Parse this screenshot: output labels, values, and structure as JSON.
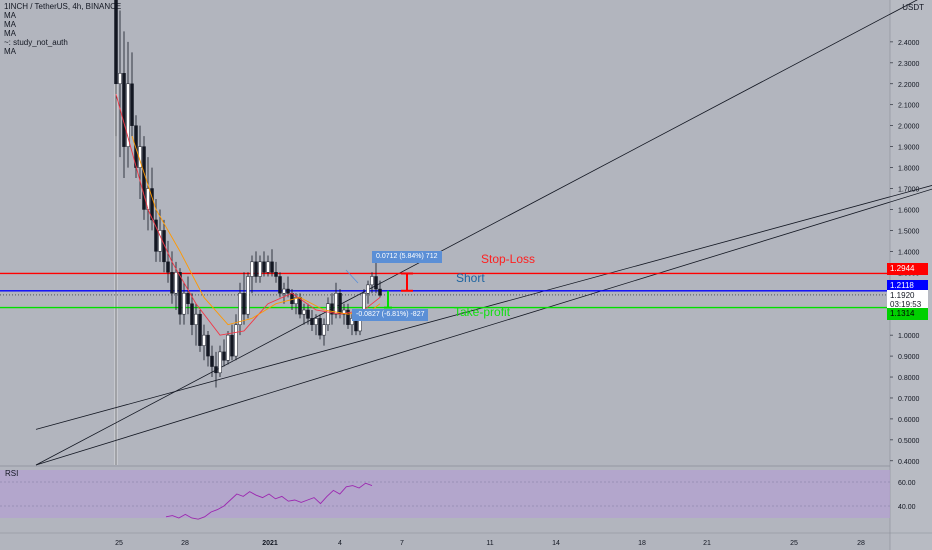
{
  "legend": {
    "symbol": "1INCH / TetherUS, 4h, BINANCE",
    "indicators": [
      "MA",
      "MA",
      "MA",
      "~: study_not_auth",
      "MA"
    ]
  },
  "currency": "USDT",
  "annotations": {
    "stop_loss": "Stop-Loss",
    "short": "Short",
    "take_profit": "Take-profit",
    "measure_up": "0.0712 (5.84%) 712",
    "measure_down": "-0.0827 (-6.81%) -827"
  },
  "price_tags": {
    "stop_loss": "1.2944",
    "entry": "1.2118",
    "current": "1.1920",
    "countdown": "03:19:53",
    "take_profit": "1.1314"
  },
  "colors": {
    "background": "#b2b5be",
    "stop_loss": "#ff0000",
    "take_profit": "#00e000",
    "entry": "#0000ff",
    "short_text": "#1e64a0",
    "rsi_band": "#b4a0d2",
    "rsi_line": "#9c27b0",
    "measure_box": "#5b8fd6"
  },
  "rsi": {
    "label": "RSI",
    "ticks": [
      "60.00",
      "40.00"
    ]
  },
  "chart_data": {
    "type": "candlestick",
    "symbol": "1INCH / TetherUS",
    "timeframe": "4h",
    "exchange": "BINANCE",
    "y_unit": "USDT",
    "ylim": [
      0.38,
      2.6
    ],
    "price_ticks": [
      "2.4000",
      "2.3000",
      "2.2000",
      "2.1000",
      "2.0000",
      "1.9000",
      "1.8000",
      "1.7000",
      "1.6000",
      "1.5000",
      "1.4000",
      "1.3000",
      "1.2000",
      "1.1000",
      "1.0000",
      "0.9000",
      "0.8000",
      "0.7000",
      "0.6000",
      "0.5000",
      "0.4000"
    ],
    "x_ticks": [
      "25",
      "28",
      "2021",
      "4",
      "7",
      "11",
      "14",
      "18",
      "21",
      "25",
      "28"
    ],
    "horizontal_levels": [
      {
        "name": "Stop-Loss",
        "value": 1.2944
      },
      {
        "name": "Short",
        "value": 1.2118
      },
      {
        "name": "Take-profit",
        "value": 1.1314
      }
    ],
    "candles_ohlc": [
      [
        2.6,
        2.6,
        1.95,
        2.2
      ],
      [
        2.2,
        2.55,
        1.85,
        2.25
      ],
      [
        2.25,
        2.45,
        1.75,
        1.9
      ],
      [
        1.9,
        2.4,
        1.8,
        2.2
      ],
      [
        2.2,
        2.35,
        1.95,
        2.0
      ],
      [
        2.0,
        2.05,
        1.75,
        1.8
      ],
      [
        1.8,
        2.0,
        1.65,
        1.9
      ],
      [
        1.9,
        1.95,
        1.55,
        1.6
      ],
      [
        1.6,
        1.85,
        1.5,
        1.7
      ],
      [
        1.7,
        1.8,
        1.5,
        1.55
      ],
      [
        1.55,
        1.65,
        1.35,
        1.4
      ],
      [
        1.4,
        1.6,
        1.35,
        1.5
      ],
      [
        1.5,
        1.55,
        1.3,
        1.35
      ],
      [
        1.35,
        1.45,
        1.25,
        1.3
      ],
      [
        1.3,
        1.4,
        1.15,
        1.2
      ],
      [
        1.2,
        1.35,
        1.12,
        1.3
      ],
      [
        1.3,
        1.32,
        1.05,
        1.1
      ],
      [
        1.1,
        1.25,
        1.05,
        1.2
      ],
      [
        1.2,
        1.28,
        1.1,
        1.15
      ],
      [
        1.15,
        1.2,
        1.0,
        1.05
      ],
      [
        1.05,
        1.15,
        0.95,
        1.1
      ],
      [
        1.1,
        1.12,
        0.92,
        0.95
      ],
      [
        0.95,
        1.05,
        0.88,
        1.0
      ],
      [
        1.0,
        1.02,
        0.85,
        0.9
      ],
      [
        0.9,
        0.95,
        0.8,
        0.85
      ],
      [
        0.85,
        0.92,
        0.75,
        0.82
      ],
      [
        0.82,
        0.95,
        0.8,
        0.92
      ],
      [
        0.92,
        0.98,
        0.85,
        0.88
      ],
      [
        0.88,
        1.02,
        0.86,
        1.0
      ],
      [
        1.0,
        1.05,
        0.88,
        0.9
      ],
      [
        0.9,
        1.1,
        0.88,
        1.05
      ],
      [
        1.05,
        1.25,
        1.0,
        1.2
      ],
      [
        1.2,
        1.3,
        1.05,
        1.1
      ],
      [
        1.1,
        1.3,
        1.08,
        1.28
      ],
      [
        1.28,
        1.38,
        1.2,
        1.35
      ],
      [
        1.35,
        1.4,
        1.25,
        1.28
      ],
      [
        1.28,
        1.38,
        1.25,
        1.35
      ],
      [
        1.35,
        1.4,
        1.28,
        1.3
      ],
      [
        1.3,
        1.38,
        1.28,
        1.35
      ],
      [
        1.35,
        1.41,
        1.28,
        1.3
      ],
      [
        1.3,
        1.35,
        1.25,
        1.28
      ],
      [
        1.28,
        1.3,
        1.18,
        1.2
      ],
      [
        1.2,
        1.25,
        1.15,
        1.22
      ],
      [
        1.22,
        1.28,
        1.18,
        1.2
      ],
      [
        1.2,
        1.22,
        1.12,
        1.15
      ],
      [
        1.15,
        1.2,
        1.1,
        1.18
      ],
      [
        1.18,
        1.2,
        1.08,
        1.1
      ],
      [
        1.1,
        1.15,
        1.05,
        1.12
      ],
      [
        1.12,
        1.15,
        1.05,
        1.08
      ],
      [
        1.08,
        1.12,
        1.02,
        1.05
      ],
      [
        1.05,
        1.1,
        1.0,
        1.08
      ],
      [
        1.08,
        1.1,
        0.98,
        1.0
      ],
      [
        1.0,
        1.08,
        0.95,
        1.05
      ],
      [
        1.05,
        1.18,
        1.02,
        1.15
      ],
      [
        1.15,
        1.2,
        1.05,
        1.1
      ],
      [
        1.1,
        1.25,
        1.08,
        1.2
      ],
      [
        1.2,
        1.22,
        1.08,
        1.1
      ],
      [
        1.1,
        1.15,
        1.05,
        1.12
      ],
      [
        1.12,
        1.15,
        1.03,
        1.05
      ],
      [
        1.05,
        1.1,
        1.0,
        1.08
      ],
      [
        1.08,
        1.1,
        1.0,
        1.02
      ],
      [
        1.02,
        1.12,
        1.0,
        1.1
      ],
      [
        1.1,
        1.22,
        1.08,
        1.2
      ],
      [
        1.2,
        1.26,
        1.15,
        1.24
      ],
      [
        1.24,
        1.3,
        1.2,
        1.28
      ],
      [
        1.28,
        1.4,
        1.2,
        1.22
      ],
      [
        1.22,
        1.26,
        1.18,
        1.19
      ]
    ],
    "moving_averages": [
      {
        "name": "MA",
        "color": "#f23645",
        "values": [
          [
            0,
            2.15
          ],
          [
            8,
            1.6
          ],
          [
            14,
            1.35
          ],
          [
            20,
            1.15
          ],
          [
            26,
            1.0
          ],
          [
            32,
            1.02
          ],
          [
            38,
            1.15
          ],
          [
            44,
            1.2
          ],
          [
            50,
            1.12
          ],
          [
            56,
            1.1
          ],
          [
            62,
            1.12
          ],
          [
            66,
            1.18
          ]
        ]
      },
      {
        "name": "MA",
        "color": "#ff9800",
        "values": [
          [
            4,
            1.95
          ],
          [
            10,
            1.6
          ],
          [
            16,
            1.4
          ],
          [
            22,
            1.18
          ],
          [
            28,
            1.05
          ],
          [
            34,
            1.08
          ],
          [
            40,
            1.15
          ],
          [
            46,
            1.18
          ],
          [
            52,
            1.12
          ],
          [
            58,
            1.1
          ],
          [
            64,
            1.12
          ],
          [
            66,
            1.15
          ]
        ]
      }
    ],
    "trendlines": [
      {
        "from": [
          -20,
          0.38
        ],
        "to": [
          230,
          1.85
        ]
      },
      {
        "from": [
          -20,
          0.38
        ],
        "to": [
          230,
          2.9
        ]
      },
      {
        "from": [
          -20,
          0.55
        ],
        "to": [
          230,
          1.85
        ]
      }
    ],
    "rsi": {
      "ylim": [
        20,
        70
      ],
      "values": [
        31,
        32,
        30,
        33,
        30,
        29,
        31,
        35,
        37,
        40,
        45,
        50,
        48,
        52,
        49,
        47,
        50,
        46,
        48,
        44,
        45,
        43,
        45,
        47,
        42,
        48,
        53,
        50,
        56,
        57,
        55,
        59,
        57
      ]
    }
  }
}
